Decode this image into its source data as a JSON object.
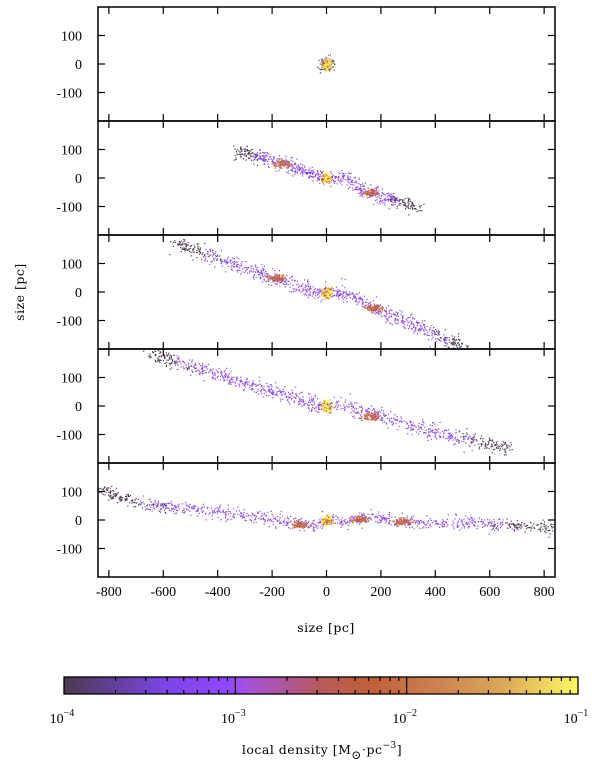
{
  "chart_data": {
    "type": "scatter",
    "panels": 5,
    "xlabel": "size [pc]",
    "ylabel": "size [pc]",
    "xlim": [
      -840,
      840
    ],
    "ylim": [
      -200,
      200
    ],
    "xticks": [
      -800,
      -600,
      -400,
      -200,
      0,
      200,
      400,
      600,
      800
    ],
    "xtick_labels": [
      "-800",
      "-600",
      "-400",
      "-200",
      "0",
      "200",
      "400",
      "600",
      "800"
    ],
    "yticks": [
      -100,
      0,
      100
    ],
    "ytick_labels": [
      "-100",
      "0",
      "100"
    ],
    "grid": false,
    "streams": [
      {
        "path": [
          [
            -10,
            0
          ],
          [
            10,
            0
          ]
        ],
        "spread": 12,
        "clumps": [
          [
            0,
            0
          ]
        ],
        "n": 120
      },
      {
        "path": [
          [
            -330,
            95
          ],
          [
            -170,
            55
          ],
          [
            -40,
            10
          ],
          [
            0,
            0
          ],
          [
            60,
            5
          ],
          [
            150,
            -50
          ],
          [
            330,
            -100
          ]
        ],
        "spread": 12,
        "clumps": [
          [
            -165,
            52
          ],
          [
            0,
            0
          ],
          [
            160,
            -50
          ]
        ],
        "n": 700
      },
      {
        "path": [
          [
            -550,
            170
          ],
          [
            -190,
            50
          ],
          [
            -40,
            5
          ],
          [
            0,
            0
          ],
          [
            60,
            0
          ],
          [
            180,
            -55
          ],
          [
            520,
            -200
          ]
        ],
        "spread": 13,
        "clumps": [
          [
            -185,
            50
          ],
          [
            0,
            0
          ],
          [
            175,
            -55
          ]
        ],
        "n": 900
      },
      {
        "path": [
          [
            -650,
            185
          ],
          [
            -300,
            80
          ],
          [
            -50,
            10
          ],
          [
            0,
            0
          ],
          [
            60,
            5
          ],
          [
            350,
            -80
          ],
          [
            680,
            -150
          ]
        ],
        "spread": 13,
        "clumps": [
          [
            0,
            0
          ],
          [
            160,
            -35
          ]
        ],
        "n": 950
      },
      {
        "path": [
          [
            -840,
            110
          ],
          [
            -700,
            60
          ],
          [
            -300,
            20
          ],
          [
            -50,
            -20
          ],
          [
            0,
            0
          ],
          [
            80,
            -5
          ],
          [
            130,
            10
          ],
          [
            300,
            -5
          ],
          [
            600,
            -10
          ],
          [
            840,
            -30
          ]
        ],
        "spread": 11,
        "clumps": [
          [
            0,
            0
          ],
          [
            -100,
            -15
          ],
          [
            120,
            5
          ],
          [
            280,
            -5
          ]
        ],
        "n": 1000
      }
    ],
    "colorbar": {
      "label": "local density [M",
      "label_sub": "⊙",
      "label_mid": "·pc",
      "label_sup": "−3",
      "label_end": "]",
      "scale": "log",
      "range": [
        0.0001,
        0.1
      ],
      "tick_labels": [
        {
          "base": "10",
          "exp": "−4"
        },
        {
          "base": "10",
          "exp": "−3"
        },
        {
          "base": "10",
          "exp": "−2"
        },
        {
          "base": "10",
          "exp": "−1"
        }
      ],
      "colors": [
        "#4a3a50",
        "#7d45e8",
        "#9346fb",
        "#a552d8",
        "#b75a5a",
        "#c06038",
        "#cc8050",
        "#dcaa58",
        "#fff862"
      ]
    }
  }
}
